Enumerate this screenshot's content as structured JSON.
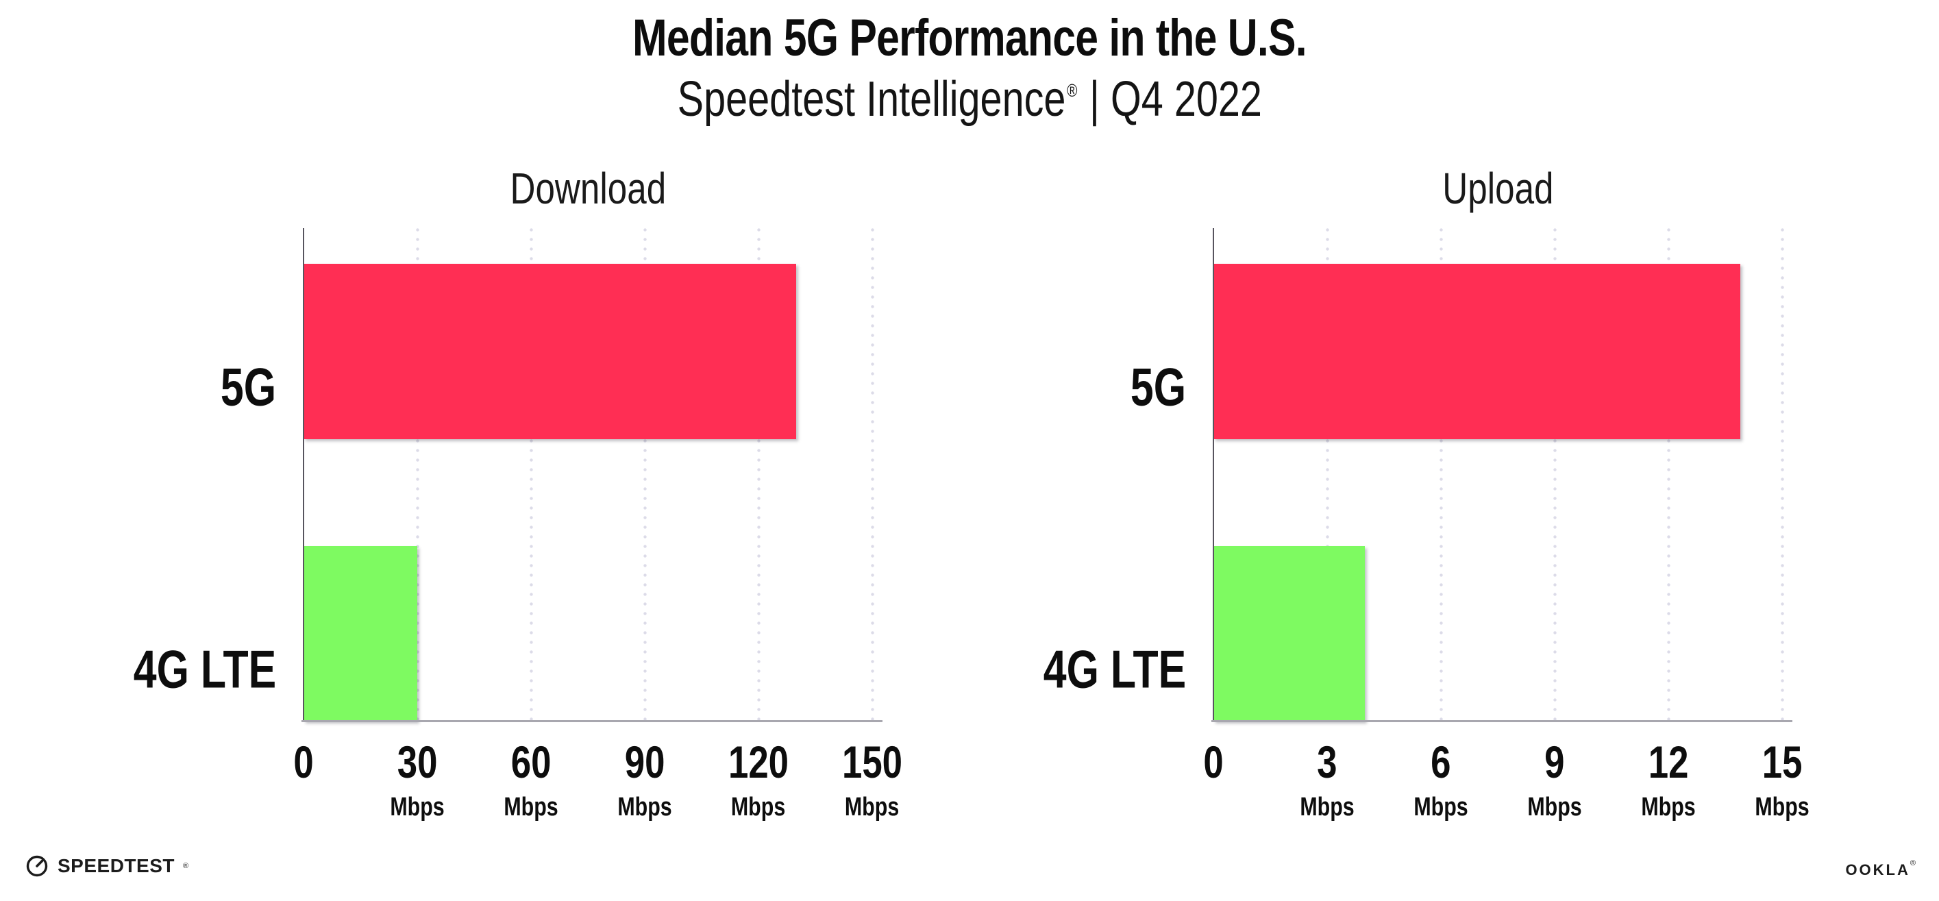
{
  "header": {
    "title": "Median 5G Performance in the U.S.",
    "subtitle_brand": "Speedtest Intelligence",
    "subtitle_reg": "®",
    "subtitle_rest": " | Q4 2022"
  },
  "chart_data": [
    {
      "type": "bar",
      "orientation": "horizontal",
      "title": "Download",
      "categories": [
        "5G",
        "4G LTE"
      ],
      "values": [
        130,
        30
      ],
      "unit": "Mbps",
      "xlabel": "",
      "ylabel": "",
      "xlim": [
        0,
        150
      ],
      "xticks": [
        0,
        30,
        60,
        90,
        120,
        150
      ],
      "grid": "dotted-vertical",
      "legend": "none",
      "bar_colors": [
        "#FF2E54",
        "#7EFA61"
      ]
    },
    {
      "type": "bar",
      "orientation": "horizontal",
      "title": "Upload",
      "categories": [
        "5G",
        "4G LTE"
      ],
      "values": [
        13.9,
        4
      ],
      "unit": "Mbps",
      "xlabel": "",
      "ylabel": "",
      "xlim": [
        0,
        15
      ],
      "xticks": [
        0,
        3,
        6,
        9,
        12,
        15
      ],
      "grid": "dotted-vertical",
      "legend": "none",
      "bar_colors": [
        "#FF2E54",
        "#7EFA61"
      ]
    }
  ],
  "styles": {
    "bar_color_5g": "#FF2E54",
    "bar_color_4g_lte": "#7EFA61",
    "grid_dot_color": "#DCDBE8",
    "y_axis_color": "#57545E",
    "x_axis_color": "#A8A7AF",
    "text_color": "#0d0d0d",
    "background": "#ffffff"
  },
  "footer": {
    "speedtest_label": "SPEEDTEST",
    "speedtest_reg": "®",
    "ookla_label": "OOKLA",
    "ookla_reg": "®"
  }
}
